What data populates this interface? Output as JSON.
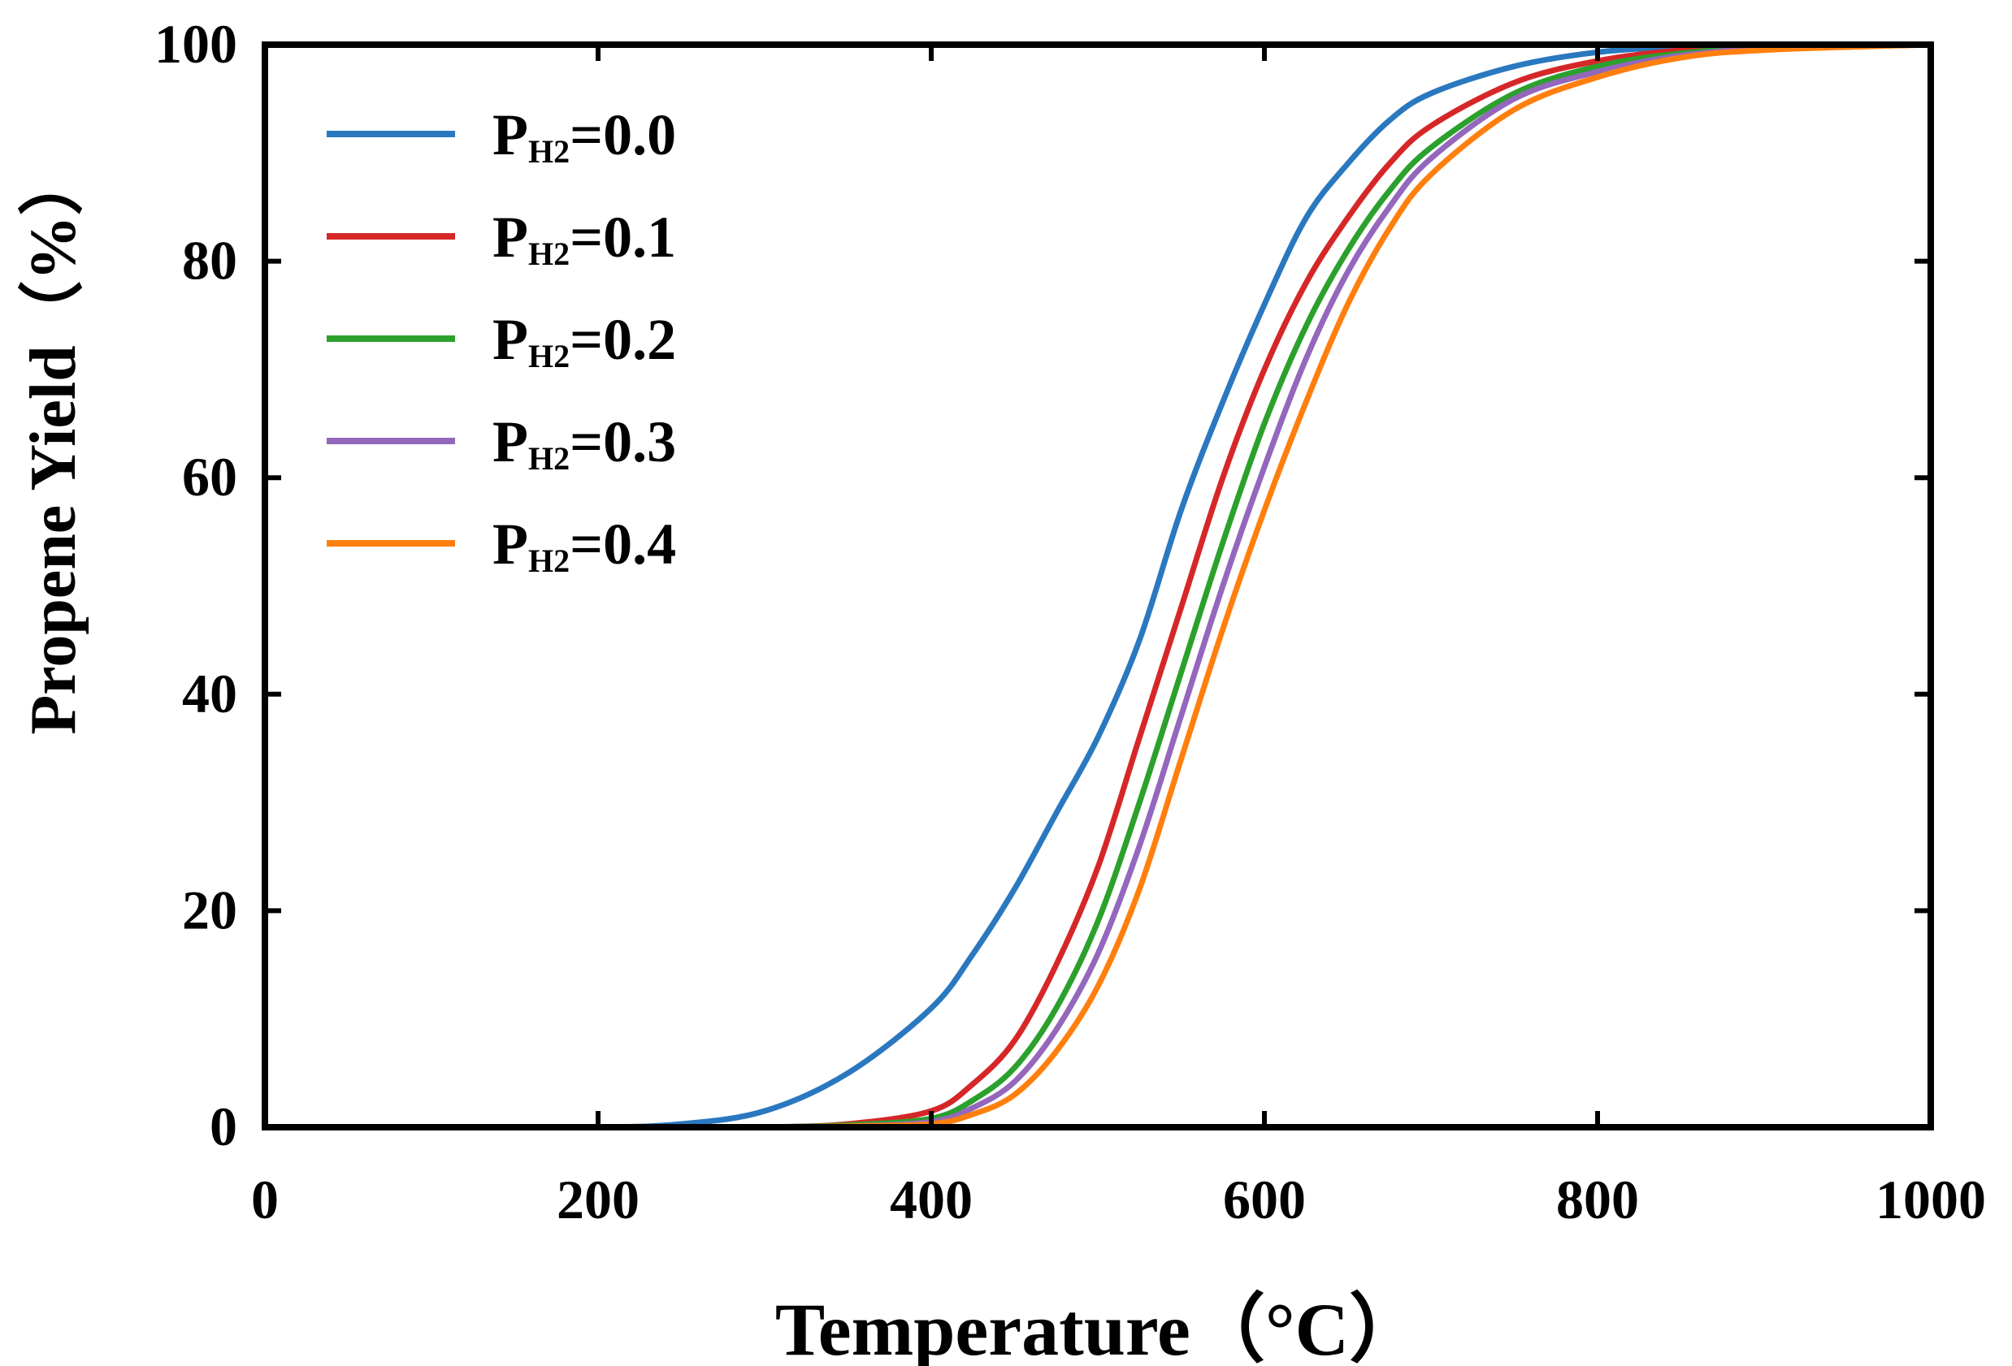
{
  "chart_data": {
    "type": "line",
    "xlabel": "Temperature（°C）",
    "ylabel": "Propene Yield（%）",
    "xlim": [
      0,
      1000
    ],
    "ylim": [
      0,
      100
    ],
    "xticks": [
      0,
      200,
      400,
      600,
      800,
      1000
    ],
    "yticks": [
      0,
      20,
      40,
      60,
      80,
      100
    ],
    "grid": false,
    "legend_position": "top-left",
    "x": [
      0,
      100,
      200,
      250,
      300,
      350,
      400,
      425,
      450,
      475,
      500,
      525,
      550,
      575,
      600,
      625,
      650,
      675,
      700,
      750,
      800,
      850,
      900,
      1000
    ],
    "series": [
      {
        "name": "PH2=0.0",
        "label_main": "P",
        "label_sub": "H2",
        "label_value": "=0.0",
        "color": "#2a78bf",
        "values": [
          0,
          0,
          0,
          0.3,
          1.5,
          5,
          11,
          16,
          22,
          29,
          36,
          45,
          57,
          67,
          76,
          84,
          89,
          93,
          95.5,
          98,
          99.3,
          99.8,
          100,
          100
        ]
      },
      {
        "name": "PH2=0.1",
        "label_main": "P",
        "label_sub": "H2",
        "label_value": "=0.1",
        "color": "#d62728",
        "values": [
          0,
          0,
          0,
          0,
          0,
          0.3,
          1.5,
          4,
          8,
          15,
          24,
          36,
          48,
          60,
          70,
          78,
          84,
          89,
          92.5,
          96.5,
          98.5,
          99.5,
          100,
          100
        ]
      },
      {
        "name": "PH2=0.2",
        "label_main": "P",
        "label_sub": "H2",
        "label_value": "=0.2",
        "color": "#2ca02c",
        "values": [
          0,
          0,
          0,
          0,
          0,
          0.2,
          0.8,
          2.5,
          5.5,
          11,
          19,
          30,
          42,
          54,
          65,
          74,
          81,
          86.5,
          90.5,
          95.5,
          98,
          99.2,
          99.7,
          100
        ]
      },
      {
        "name": "PH2=0.3",
        "label_main": "P",
        "label_sub": "H2",
        "label_value": "=0.3",
        "color": "#9467bd",
        "values": [
          0,
          0,
          0,
          0,
          0,
          0.1,
          0.5,
          1.8,
          4.2,
          9,
          16,
          26,
          38,
          50,
          61,
          71,
          79,
          85,
          89.5,
          95,
          97.5,
          99,
          99.6,
          100
        ]
      },
      {
        "name": "PH2=0.4",
        "label_main": "P",
        "label_sub": "H2",
        "label_value": "=0.4",
        "color": "#ff7f0e",
        "values": [
          0,
          0,
          0,
          0,
          0,
          0.1,
          0.3,
          1.2,
          3,
          7,
          13,
          22,
          34,
          46,
          57,
          67,
          76,
          83,
          88,
          94,
          97,
          98.8,
          99.5,
          100
        ]
      }
    ]
  }
}
